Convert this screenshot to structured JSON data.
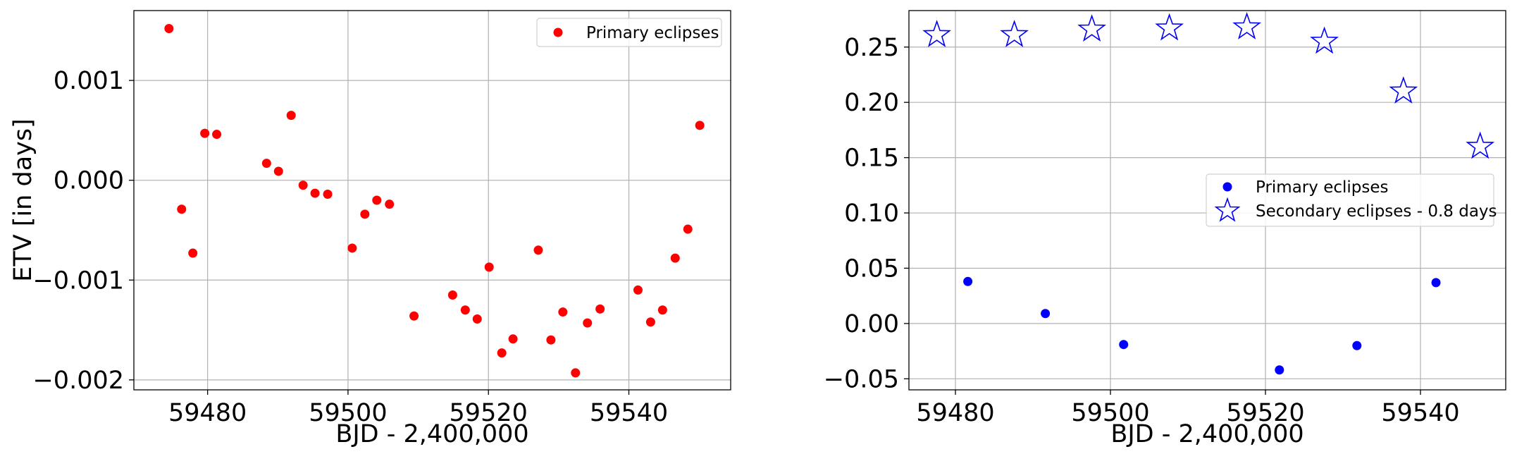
{
  "chart_data": [
    {
      "type": "scatter",
      "xlabel": "BJD - 2,400,000",
      "ylabel": "ETV [in days]",
      "xlim": [
        59469.5,
        59554.5
      ],
      "ylim": [
        -0.0021,
        0.0017
      ],
      "xticks": [
        59480,
        59500,
        59520,
        59540
      ],
      "xtick_labels": [
        "59480",
        "59500",
        "59520",
        "59540"
      ],
      "yticks": [
        -0.002,
        -0.001,
        0.0,
        0.001
      ],
      "ytick_labels": [
        "−0.002",
        "−0.001",
        "0.000",
        "0.001"
      ],
      "grid": true,
      "legend_position": "top-right",
      "series": [
        {
          "name": "Primary eclipses",
          "marker": "circle",
          "color": "#ff0000",
          "x": [
            59474.5,
            59476.3,
            59477.9,
            59479.6,
            59481.3,
            59488.4,
            59490.1,
            59491.9,
            59493.6,
            59495.3,
            59497.1,
            59500.6,
            59502.4,
            59504.1,
            59505.9,
            59509.4,
            59514.9,
            59516.7,
            59518.4,
            59520.1,
            59521.9,
            59523.5,
            59527.1,
            59528.9,
            59530.6,
            59532.4,
            59534.1,
            59535.9,
            59541.3,
            59543.1,
            59544.8,
            59546.6,
            59548.4,
            59550.1
          ],
          "y": [
            0.00152,
            -0.00029,
            -0.00073,
            0.00047,
            0.00046,
            0.00017,
            9e-05,
            0.00065,
            -5e-05,
            -0.00013,
            -0.00014,
            -0.00068,
            -0.00034,
            -0.0002,
            -0.00024,
            -0.00136,
            -0.00115,
            -0.0013,
            -0.00139,
            -0.00087,
            -0.00173,
            -0.00159,
            -0.0007,
            -0.0016,
            -0.00132,
            -0.00193,
            -0.00143,
            -0.00129,
            -0.0011,
            -0.00142,
            -0.0013,
            -0.00078,
            -0.00049,
            0.00055
          ]
        }
      ]
    },
    {
      "type": "scatter",
      "xlabel": "BJD - 2,400,000",
      "ylabel": "",
      "xlim": [
        59474.0,
        59551.0
      ],
      "ylim": [
        -0.06,
        0.283
      ],
      "xticks": [
        59480,
        59500,
        59520,
        59540
      ],
      "xtick_labels": [
        "59480",
        "59500",
        "59520",
        "59540"
      ],
      "yticks": [
        -0.05,
        0.0,
        0.05,
        0.1,
        0.15,
        0.2,
        0.25
      ],
      "ytick_labels": [
        "−0.05",
        "0.00",
        "0.05",
        "0.10",
        "0.15",
        "0.20",
        "0.25"
      ],
      "grid": true,
      "legend_position": "center-right",
      "series": [
        {
          "name": "Primary eclipses",
          "marker": "circle",
          "color": "#0000ff",
          "x": [
            59481.6,
            59491.6,
            59501.7,
            59521.8,
            59531.8,
            59542.0
          ],
          "y": [
            0.038,
            0.009,
            -0.019,
            -0.042,
            -0.02,
            0.037
          ]
        },
        {
          "name": "Secondary eclipses - 0.8 days",
          "marker": "star",
          "color": "#0000ff",
          "x": [
            59477.6,
            59487.6,
            59497.6,
            59507.6,
            59517.6,
            59527.6,
            59537.8,
            59547.7
          ],
          "y": [
            0.261,
            0.261,
            0.266,
            0.267,
            0.268,
            0.255,
            0.21,
            0.16
          ]
        }
      ]
    }
  ]
}
